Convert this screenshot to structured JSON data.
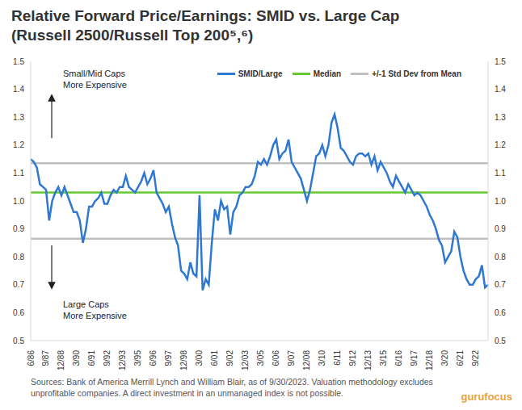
{
  "chart_data": {
    "type": "line",
    "title": "Relative Forward Price/Earnings: SMID vs. Large Cap",
    "subtitle": "(Russell 2500/Russell Top 200⁵,⁶)",
    "categories": [
      "6/86",
      null,
      null,
      null,
      null,
      "9/87",
      null,
      null,
      null,
      null,
      "12/88",
      null,
      null,
      null,
      null,
      "3/90",
      null,
      null,
      null,
      null,
      "6/91",
      null,
      null,
      null,
      null,
      "9/92",
      null,
      null,
      null,
      null,
      "12/93",
      null,
      null,
      null,
      null,
      "3/95",
      null,
      null,
      null,
      null,
      "6/96",
      null,
      null,
      null,
      null,
      "9/97",
      null,
      null,
      null,
      null,
      "12/98",
      null,
      null,
      null,
      null,
      "3/00",
      null,
      null,
      null,
      null,
      "6/01",
      null,
      null,
      null,
      null,
      "9/02",
      null,
      null,
      null,
      null,
      "12/03",
      null,
      null,
      null,
      null,
      "3/05",
      null,
      null,
      null,
      null,
      "6/06",
      null,
      null,
      null,
      null,
      "9/07",
      null,
      null,
      null,
      null,
      "12/08",
      null,
      null,
      null,
      null,
      "3/10",
      null,
      null,
      null,
      null,
      "6/11",
      null,
      null,
      null,
      null,
      "9/12",
      null,
      null,
      null,
      null,
      "12/13",
      null,
      null,
      null,
      null,
      "3/15",
      null,
      null,
      null,
      null,
      "6/16",
      null,
      null,
      null,
      null,
      "9/17",
      null,
      null,
      null,
      null,
      "12/18",
      null,
      null,
      null,
      null,
      "3/20",
      null,
      null,
      null,
      null,
      "6/21",
      null,
      null,
      null,
      null,
      "9/22",
      null,
      null,
      null,
      null
    ],
    "series": [
      {
        "name": "SMID/Large",
        "color": "#2e78d2",
        "values": [
          1.15,
          1.14,
          1.12,
          1.06,
          1.05,
          1.04,
          0.93,
          1.0,
          1.03,
          1.05,
          1.02,
          1.05,
          1.02,
          0.99,
          0.96,
          0.96,
          0.93,
          0.85,
          0.9,
          0.98,
          0.98,
          1.0,
          1.01,
          1.03,
          0.99,
          0.99,
          1.02,
          1.04,
          1.03,
          1.05,
          1.05,
          1.09,
          1.05,
          1.04,
          1.03,
          1.05,
          1.07,
          1.1,
          1.06,
          1.08,
          1.11,
          1.03,
          1.01,
          0.99,
          0.96,
          0.98,
          0.92,
          0.87,
          0.84,
          0.75,
          0.74,
          0.72,
          0.78,
          0.74,
          0.73,
          1.02,
          0.68,
          0.72,
          0.7,
          0.85,
          0.97,
          0.93,
          1.0,
          0.97,
          0.98,
          0.88,
          0.96,
          0.98,
          1.02,
          1.03,
          1.05,
          1.05,
          1.06,
          1.09,
          1.14,
          1.13,
          1.15,
          1.13,
          1.16,
          1.2,
          1.22,
          1.15,
          1.17,
          1.18,
          1.22,
          1.14,
          1.12,
          1.1,
          1.08,
          1.04,
          1.0,
          1.04,
          1.1,
          1.16,
          1.17,
          1.2,
          1.16,
          1.2,
          1.28,
          1.31,
          1.26,
          1.19,
          1.18,
          1.16,
          1.14,
          1.13,
          1.16,
          1.17,
          1.17,
          1.16,
          1.17,
          1.13,
          1.16,
          1.11,
          1.14,
          1.12,
          1.1,
          1.07,
          1.05,
          1.09,
          1.07,
          1.05,
          1.03,
          1.06,
          1.04,
          1.02,
          1.03,
          1.02,
          1.0,
          0.98,
          0.95,
          0.93,
          0.9,
          0.86,
          0.84,
          0.78,
          0.8,
          0.82,
          0.89,
          0.87,
          0.8,
          0.75,
          0.72,
          0.7,
          0.7,
          0.72,
          0.73,
          0.77,
          0.69,
          0.7
        ]
      }
    ],
    "reference_lines": [
      {
        "name": "Median",
        "color": "#66c933",
        "values": [
          1.03
        ]
      },
      {
        "name": "+/-1 Std Dev from Mean",
        "color": "#bfbfbf",
        "values": [
          1.135,
          0.865
        ]
      }
    ],
    "ylim": [
      0.5,
      1.5
    ],
    "yticks": [
      0.5,
      0.6,
      0.7,
      0.8,
      0.9,
      {
        "value": 1,
        "label": "1.0"
      },
      1.1,
      1.2,
      1.3,
      1.4,
      1.5
    ],
    "y2lim": [
      0.5,
      1.5
    ],
    "y2ticks": [
      0.5,
      0.6,
      0.7,
      0.8,
      0.9,
      {
        "value": 1,
        "label": "1.0"
      },
      1.1,
      1.2,
      1.3,
      1.4,
      1.5
    ],
    "grid": false,
    "legend": "top-right",
    "annotations": [
      [
        "Small/Mid Caps",
        "More Expensive"
      ],
      [
        "Large Caps",
        "More Expensive"
      ]
    ],
    "source": "Sources: Bank of America Merrill Lynch and William Blair, as of 9/30/2023. Valuation methodology excludes unprofitable companies. A direct investment in an unmanaged index is not possible.",
    "watermark": "gurufocus"
  }
}
